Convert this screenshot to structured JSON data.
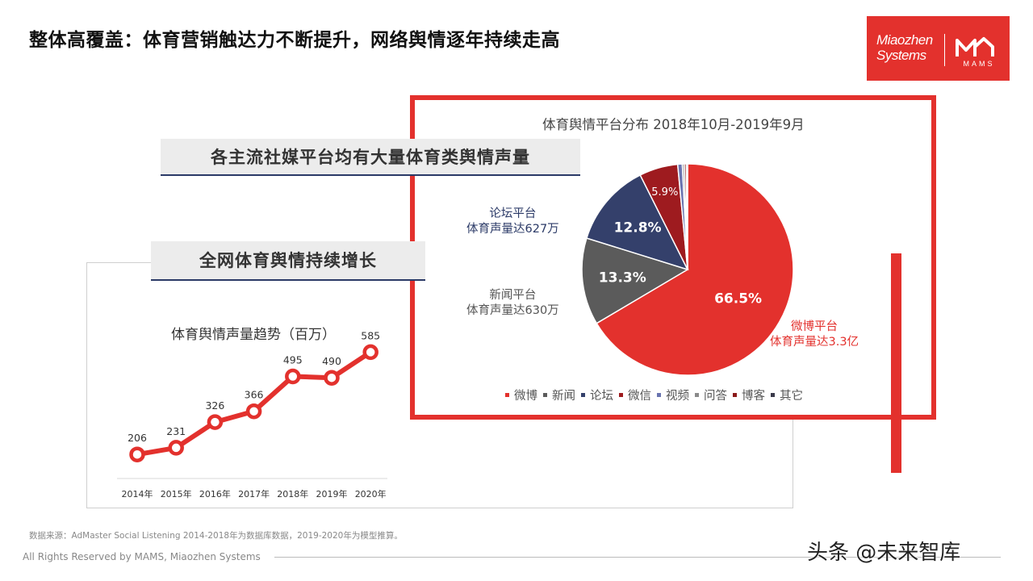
{
  "page": {
    "title": "整体高覆盖：体育营销触达力不断提升，网络舆情逐年持续走高",
    "banner_social": "各主流社媒平台均有大量体育类舆情声量",
    "banner_growth": "全网体育舆情持续增长",
    "source": "数据来源：AdMaster Social Listening  2014-2018年为数据库数据，2019-2020年为模型推算。",
    "footer": "All Rights Reserved by MAMS, Miaozhen Systems",
    "watermark": "头条 @未来智库"
  },
  "logo": {
    "brand_line1": "Miaozhen",
    "brand_line2": "Systems",
    "mark_text": "MAMS",
    "color": "#e3312d"
  },
  "pie_labels": {
    "forum_line1": "论坛平台",
    "forum_line2": "体育声量达627万",
    "news_line1": "新闻平台",
    "news_line2": "体育声量达630万",
    "weibo_line1": "微博平台",
    "weibo_line2": "体育声量达3.3亿"
  },
  "chart_data": [
    {
      "type": "pie",
      "title": "体育舆情平台分布  2018年10月-2019年9月",
      "slices": [
        {
          "name": "微博",
          "value": 66.5,
          "label": "66.5%",
          "color": "#e3312d"
        },
        {
          "name": "新闻",
          "value": 13.3,
          "label": "13.3%",
          "color": "#5b5b5b"
        },
        {
          "name": "论坛",
          "value": 12.8,
          "label": "12.8%",
          "color": "#34406b"
        },
        {
          "name": "微信",
          "value": 5.9,
          "label": "5.9%",
          "color": "#9e1b1f"
        },
        {
          "name": "视频",
          "value": 0.7,
          "label": "",
          "color": "#6a74b0"
        },
        {
          "name": "问答",
          "value": 0.3,
          "label": "",
          "color": "#8a8a8a"
        },
        {
          "name": "博客",
          "value": 0.3,
          "label": "",
          "color": "#8b1a1a"
        },
        {
          "name": "其它",
          "value": 0.2,
          "label": "",
          "color": "#3a3a4a"
        }
      ],
      "legend": [
        "微博",
        "新闻",
        "论坛",
        "微信",
        "视频",
        "问答",
        "博客",
        "其它"
      ],
      "legend_position": "bottom"
    },
    {
      "type": "line",
      "title": "体育舆情声量趋势（百万）",
      "categories": [
        "2014年",
        "2015年",
        "2016年",
        "2017年",
        "2018年",
        "2019年",
        "2020年"
      ],
      "values": [
        206,
        231,
        326,
        366,
        495,
        490,
        585
      ],
      "data_labels": [
        "206",
        "231",
        "326",
        "366",
        "495",
        "490",
        "585"
      ],
      "color": "#e3312d",
      "ylim": [
        120,
        640
      ]
    }
  ]
}
